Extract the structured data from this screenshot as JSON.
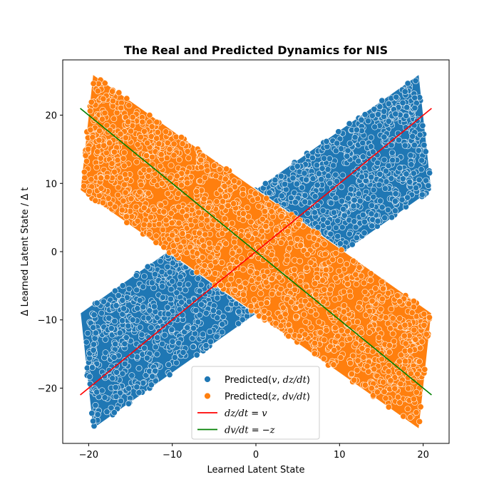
{
  "chart_data": {
    "type": "scatter",
    "title": "The Real and Predicted Dynamics for NIS",
    "xlabel": "Learned Latent State",
    "ylabel": "Δ Learned Latent State / Δ t",
    "xlim": [
      -23.1,
      23.1
    ],
    "ylim": [
      -28.1,
      28.1
    ],
    "xticks": [
      -20,
      -10,
      0,
      10,
      20
    ],
    "yticks": [
      -20,
      -10,
      0,
      10,
      20
    ],
    "grid": false,
    "legend_position": "bottom-center",
    "series": [
      {
        "name": "Predicted(v, dz/dt)",
        "kind": "scatter",
        "color": "#1f77b4",
        "region_polygon": [
          [
            -19.5,
            -26
          ],
          [
            -21,
            -9
          ],
          [
            19.5,
            26
          ],
          [
            21,
            9
          ]
        ],
        "label_parts": [
          {
            "t": "Predicted(",
            "i": false
          },
          {
            "t": "v",
            "i": true
          },
          {
            "t": ", ",
            "i": false
          },
          {
            "t": "dz/dt",
            "i": true
          },
          {
            "t": ")",
            "i": false
          }
        ]
      },
      {
        "name": "Predicted(z, dv/dt)",
        "kind": "scatter",
        "color": "#ff7f0e",
        "region_polygon": [
          [
            -19.5,
            26
          ],
          [
            -21,
            9
          ],
          [
            19.5,
            -26
          ],
          [
            21,
            -9
          ]
        ],
        "label_parts": [
          {
            "t": "Predicted(",
            "i": false
          },
          {
            "t": "z",
            "i": true
          },
          {
            "t": ", ",
            "i": false
          },
          {
            "t": "dv/dt",
            "i": true
          },
          {
            "t": ")",
            "i": false
          }
        ]
      },
      {
        "name": "dz/dt = v",
        "kind": "line",
        "color": "#ff0000",
        "x": [
          -21,
          21
        ],
        "y": [
          -21,
          21
        ],
        "label_parts": [
          {
            "t": "dz/dt",
            "i": true
          },
          {
            "t": " = ",
            "i": false
          },
          {
            "t": "v",
            "i": true
          }
        ]
      },
      {
        "name": "dv/dt = −z",
        "kind": "line",
        "color": "#008000",
        "x": [
          -21,
          21
        ],
        "y": [
          21,
          -21
        ],
        "label_parts": [
          {
            "t": "dv/dt",
            "i": true
          },
          {
            "t": " = −",
            "i": false
          },
          {
            "t": "z",
            "i": true
          }
        ]
      }
    ]
  }
}
